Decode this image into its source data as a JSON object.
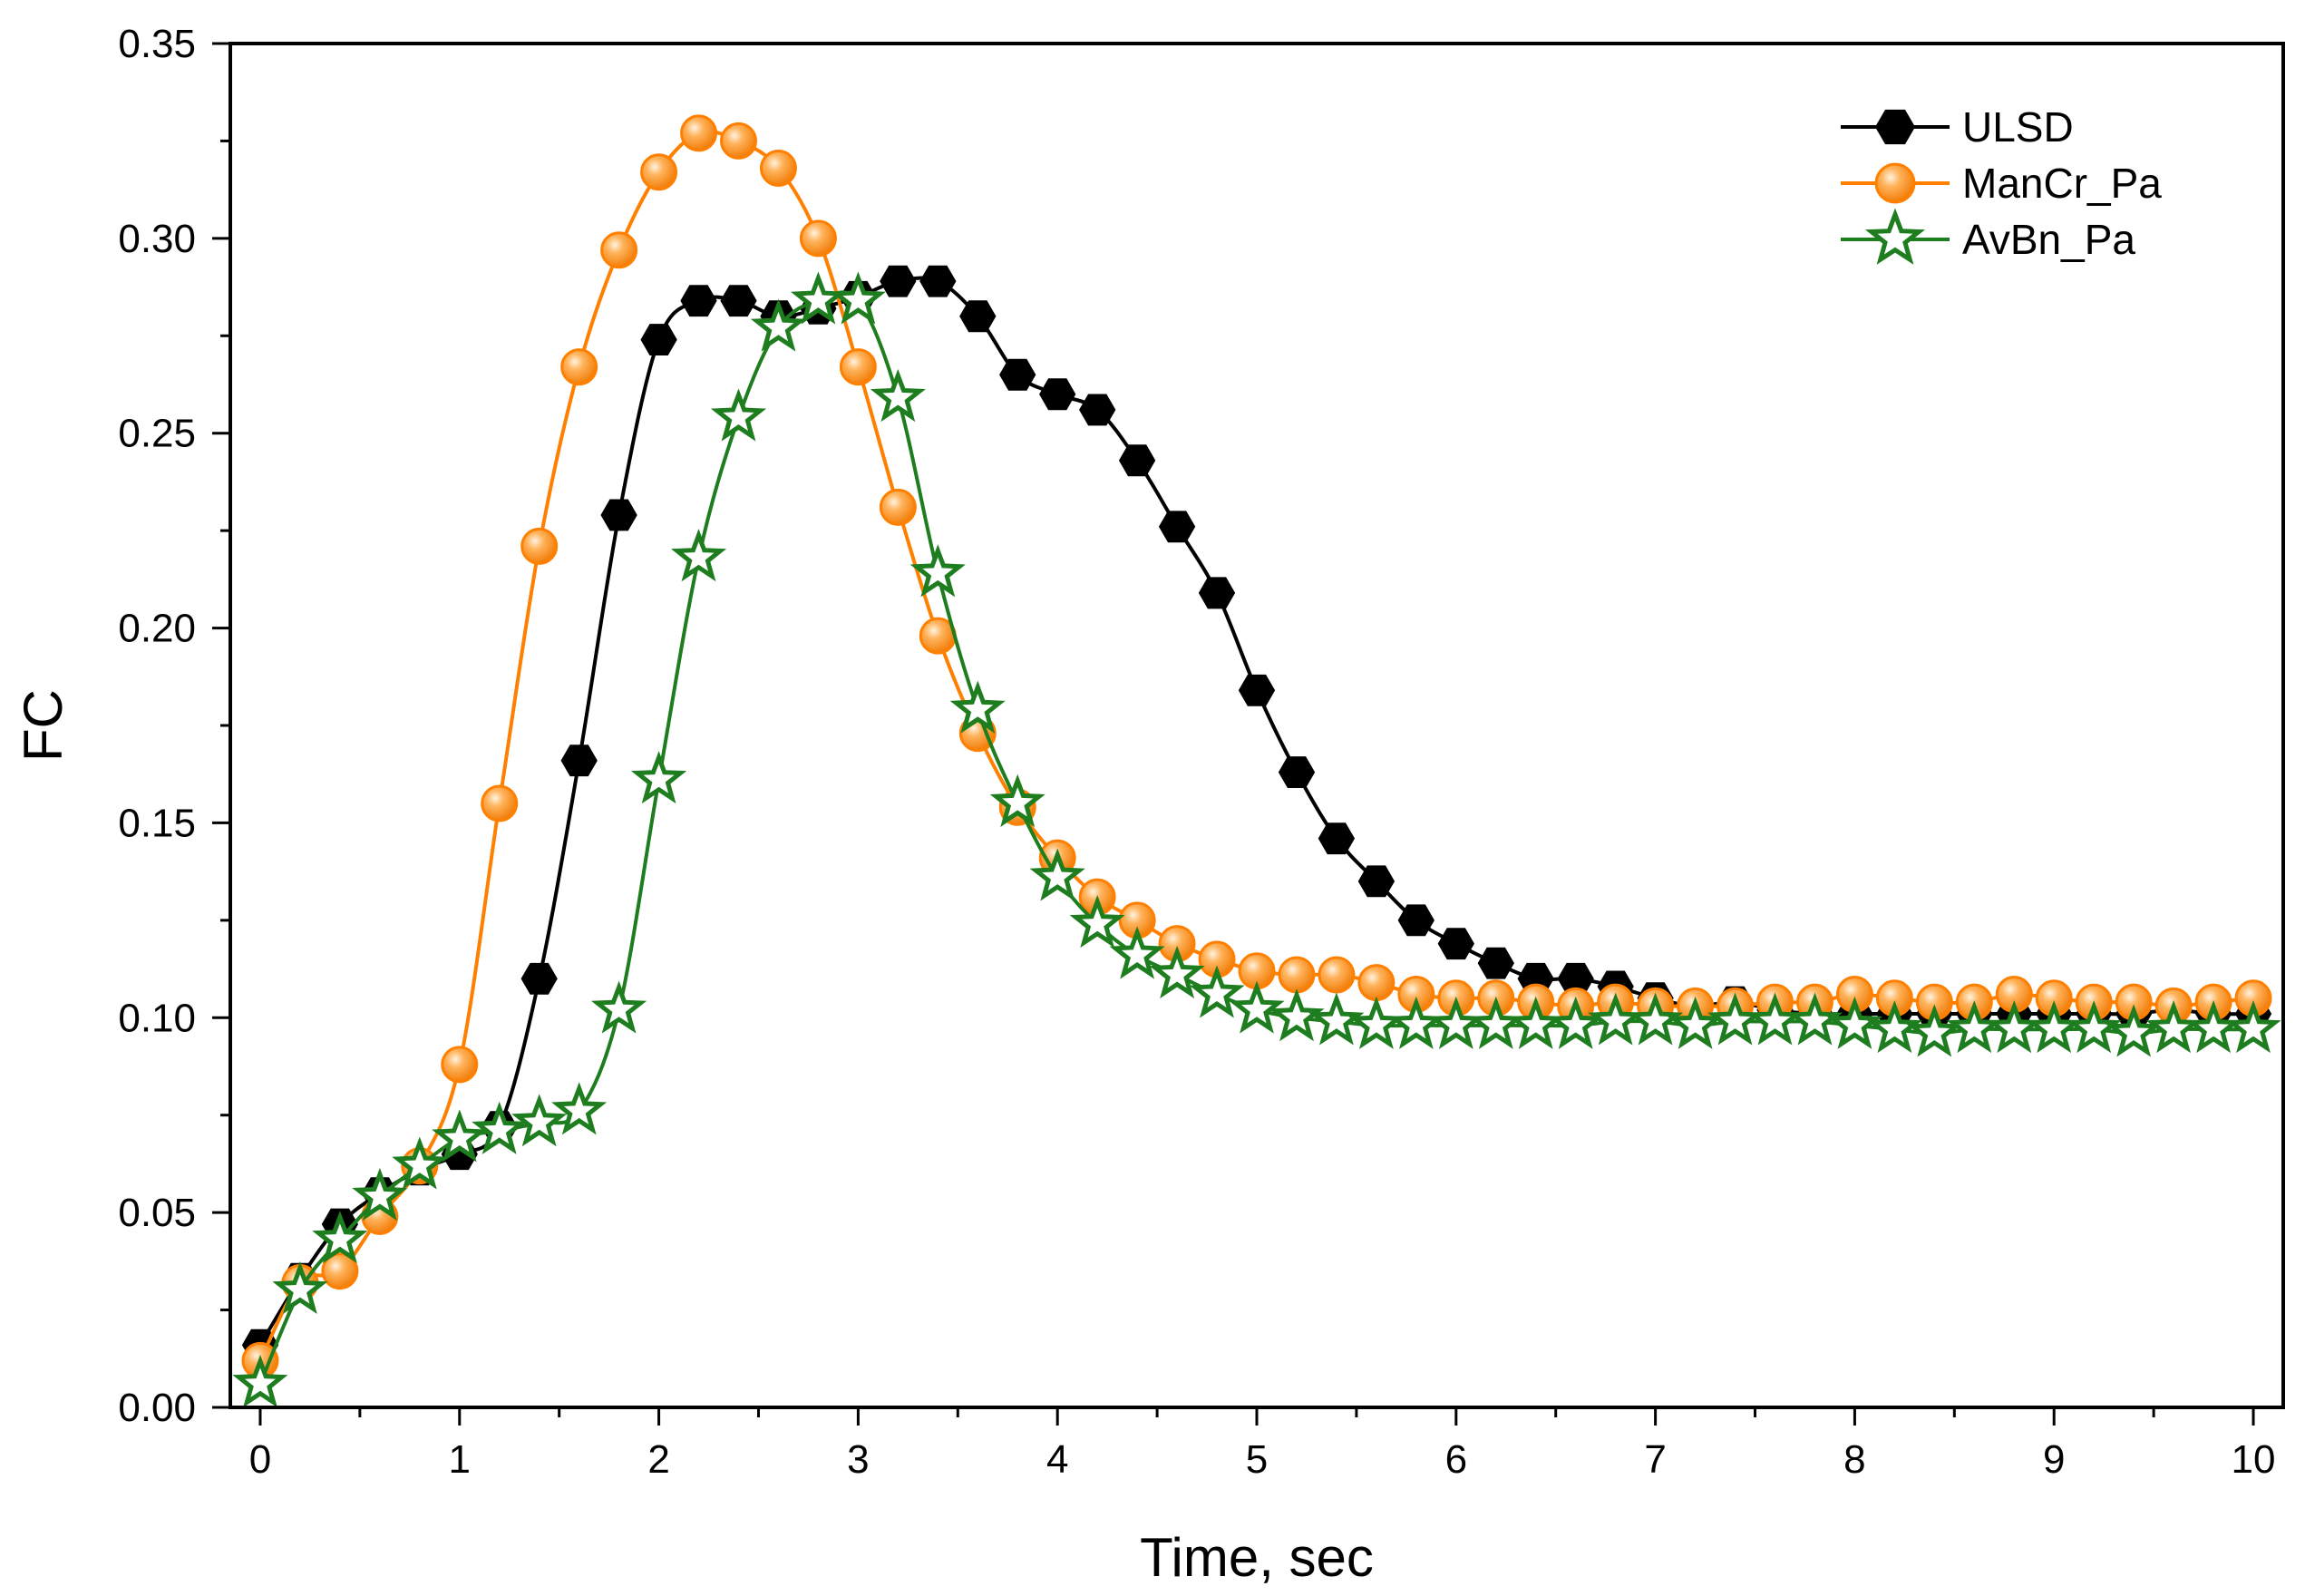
{
  "chart_data": {
    "type": "line",
    "title": "",
    "xlabel": "Time, sec",
    "ylabel": "FC",
    "xlim": [
      -0.15,
      10.15
    ],
    "ylim": [
      0,
      0.35
    ],
    "xticks": [
      0,
      1,
      2,
      3,
      4,
      5,
      6,
      7,
      8,
      9,
      10
    ],
    "xtick_labels": [
      "0",
      "1",
      "2",
      "3",
      "4",
      "5",
      "6",
      "7",
      "8",
      "9",
      "10"
    ],
    "yticks": [
      0,
      0.05,
      0.1,
      0.15,
      0.2,
      0.25,
      0.3,
      0.35
    ],
    "ytick_labels": [
      "0.00",
      "0.05",
      "0.10",
      "0.15",
      "0.20",
      "0.25",
      "0.30",
      "0.35"
    ],
    "grid": false,
    "legend_position": "top-right",
    "x": [
      0,
      0.2,
      0.4,
      0.6,
      0.8,
      1.0,
      1.2,
      1.4,
      1.6,
      1.8,
      2.0,
      2.2,
      2.4,
      2.6,
      2.8,
      3.0,
      3.2,
      3.4,
      3.6,
      3.8,
      4.0,
      4.2,
      4.4,
      4.6,
      4.8,
      5.0,
      5.2,
      5.4,
      5.6,
      5.8,
      6.0,
      6.2,
      6.4,
      6.6,
      6.8,
      7.0,
      7.2,
      7.4,
      7.6,
      7.8,
      8.0,
      8.2,
      8.4,
      8.6,
      8.8,
      9.0,
      9.2,
      9.4,
      9.6,
      9.8,
      10.0
    ],
    "series": [
      {
        "name": "ULSD",
        "color": "#000000",
        "marker": "hexagon",
        "values": [
          0.016,
          0.033,
          0.047,
          0.055,
          0.061,
          0.065,
          0.072,
          0.11,
          0.166,
          0.229,
          0.274,
          0.284,
          0.284,
          0.28,
          0.282,
          0.285,
          0.289,
          0.289,
          0.28,
          0.265,
          0.26,
          0.256,
          0.243,
          0.226,
          0.209,
          0.184,
          0.163,
          0.146,
          0.135,
          0.125,
          0.119,
          0.114,
          0.11,
          0.11,
          0.108,
          0.105,
          0.103,
          0.104,
          0.102,
          0.101,
          0.101,
          0.101,
          0.101,
          0.101,
          0.101,
          0.101,
          0.101,
          0.101,
          0.102,
          0.101,
          0.101
        ]
      },
      {
        "name": "ManCr_Pa",
        "color": "#ff8000",
        "marker": "circle",
        "values": [
          0.012,
          0.032,
          0.035,
          0.049,
          0.062,
          0.088,
          0.155,
          0.221,
          0.267,
          0.297,
          0.317,
          0.327,
          0.325,
          0.318,
          0.3,
          0.267,
          0.231,
          0.198,
          0.173,
          0.154,
          0.141,
          0.131,
          0.125,
          0.119,
          0.115,
          0.112,
          0.111,
          0.111,
          0.109,
          0.106,
          0.105,
          0.105,
          0.104,
          0.103,
          0.104,
          0.103,
          0.103,
          0.103,
          0.104,
          0.104,
          0.106,
          0.105,
          0.104,
          0.104,
          0.106,
          0.105,
          0.104,
          0.104,
          0.103,
          0.104,
          0.105
        ]
      },
      {
        "name": "AvBn_Pa",
        "color": "#1e7d1e",
        "marker": "star",
        "values": [
          0.006,
          0.03,
          0.043,
          0.054,
          0.062,
          0.069,
          0.071,
          0.073,
          0.076,
          0.102,
          0.161,
          0.218,
          0.254,
          0.277,
          0.284,
          0.284,
          0.259,
          0.214,
          0.179,
          0.155,
          0.136,
          0.124,
          0.116,
          0.111,
          0.106,
          0.102,
          0.1,
          0.099,
          0.098,
          0.098,
          0.098,
          0.098,
          0.098,
          0.098,
          0.099,
          0.099,
          0.098,
          0.099,
          0.099,
          0.099,
          0.098,
          0.097,
          0.096,
          0.097,
          0.097,
          0.097,
          0.097,
          0.096,
          0.097,
          0.097,
          0.097
        ]
      }
    ]
  }
}
